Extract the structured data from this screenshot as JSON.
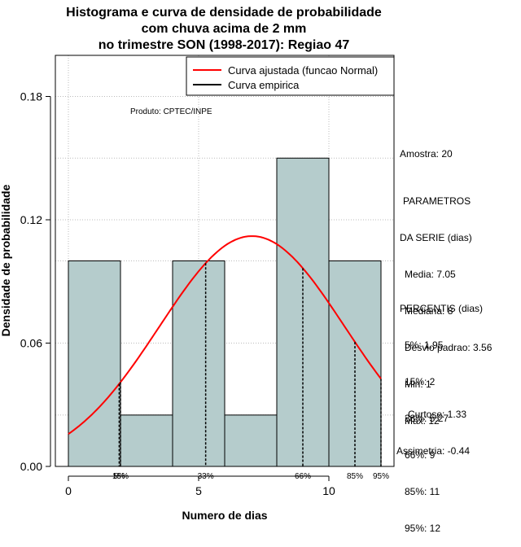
{
  "title_lines": [
    "Histograma e curva de densidade de probabilidade",
    "com chuva acima de 2 mm",
    "no trimestre SON (1998-2017): Regiao 47"
  ],
  "credit": "Produto: CPTEC/INPE",
  "legend": {
    "fit": "Curva ajustada (funcao Normal)",
    "empirical": "Curva empirica"
  },
  "sidebar": {
    "sample": "Amostra: 20",
    "params_heading": [
      "PARAMETROS",
      "DA SERIE (dias)"
    ],
    "params": [
      "Media: 7.05",
      "Mediana: 8",
      "Desvio padrao: 3.56",
      "Min: 1",
      "Max: 12"
    ],
    "percentis_heading": "PERCENTIS (dias)",
    "percentis": [
      "5%: 1.95",
      "15%: 2",
      "33%: 5.27",
      "66%: 9",
      "85%: 11",
      "95%: 12"
    ],
    "kurtosis": "Curtose: 1.33",
    "skewness": "Assimetria: -0.44"
  },
  "colors": {
    "bar_fill": "#b5cccc",
    "fit_curve": "#ff0000",
    "empirical_curve": "#000000",
    "grid": "#bbbbbb"
  },
  "chart_data": {
    "type": "bar",
    "xlabel": "Numero de dias",
    "ylabel": "Densidade de probabilidade",
    "xlim": [
      -0.5,
      12.5
    ],
    "ylim": [
      0.0,
      0.2
    ],
    "x_ticks": [
      0,
      5,
      10
    ],
    "y_ticks": [
      0.0,
      0.06,
      0.12,
      0.18
    ],
    "y_tick_labels": [
      "0.00",
      "0.06",
      "0.12",
      "0.18"
    ],
    "grid": true,
    "legend_position": "top-right",
    "histogram": {
      "bins": [
        [
          0,
          2
        ],
        [
          2,
          4
        ],
        [
          4,
          6
        ],
        [
          6,
          8
        ],
        [
          8,
          10
        ],
        [
          10,
          12
        ]
      ],
      "density": [
        0.1,
        0.025,
        0.1,
        0.025,
        0.15,
        0.1
      ]
    },
    "fitted_normal": {
      "name": "Curva ajustada (funcao Normal)",
      "mean": 7.05,
      "sd": 3.56,
      "x_range": [
        0,
        12
      ]
    },
    "percentile_markers": [
      {
        "label": "5%",
        "x": 1.95
      },
      {
        "label": "15%",
        "x": 2.0
      },
      {
        "label": "33%",
        "x": 5.27
      },
      {
        "label": "66%",
        "x": 9.0
      },
      {
        "label": "85%",
        "x": 11.0
      },
      {
        "label": "95%",
        "x": 12.0
      }
    ]
  }
}
